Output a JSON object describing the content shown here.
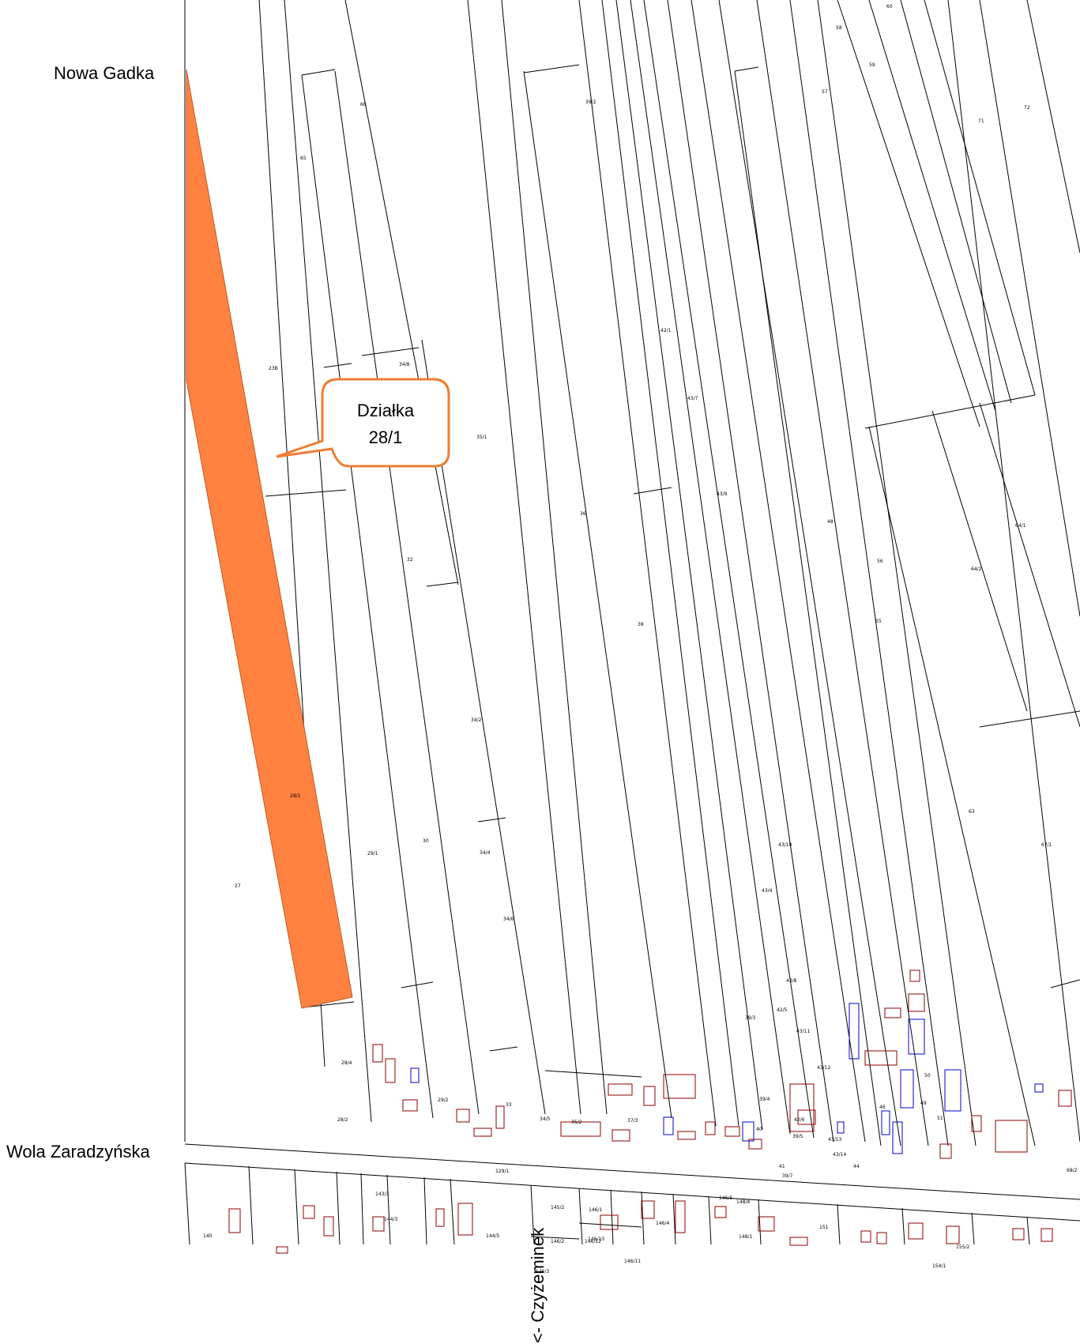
{
  "place_labels": {
    "north": "Nowa Gadka",
    "south": "Wola Zaradzyńska",
    "road_direction": "<- Czyżeminek"
  },
  "callout": {
    "line1": "Działka",
    "line2": "28/1",
    "border_color": "#ED7D31"
  },
  "highlighted_parcel": {
    "id": "28/1",
    "color": "#FF8241"
  },
  "map_colors": {
    "parcel_lines": "#000000",
    "buildings": "#8B0000",
    "utilities": "#0000CC"
  },
  "parcel_numbers": [
    "65",
    "66",
    "39/2",
    "58",
    "60",
    "59",
    "57",
    "71",
    "72",
    "23B",
    "34/8",
    "35/1",
    "42/1",
    "43/7",
    "43/9",
    "36",
    "48",
    "32",
    "38",
    "56",
    "55",
    "64/1",
    "64/2",
    "34/2",
    "28/1",
    "29/1",
    "30",
    "34/4",
    "43/10",
    "63",
    "67/1",
    "27",
    "34/6",
    "43/4",
    "43/8",
    "42/5",
    "39/3",
    "43/11",
    "28/4",
    "43/12",
    "50",
    "28/2",
    "29/2",
    "33",
    "34/5",
    "35/2",
    "37/3",
    "39/4",
    "40",
    "42/6",
    "43/13",
    "43/14",
    "44",
    "51",
    "39/5",
    "41",
    "39/7",
    "129/1",
    "140",
    "143/3",
    "144/3",
    "144/5",
    "145/2",
    "146/1",
    "146/2",
    "146/3",
    "146/4",
    "146/5",
    "146/10",
    "146/11",
    "146/12",
    "148/1",
    "148/4",
    "151",
    "154/1",
    "155/2",
    "68/2",
    "49",
    "46"
  ]
}
